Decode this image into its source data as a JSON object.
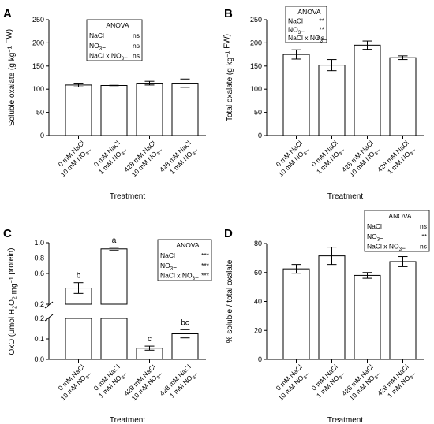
{
  "chart_data": [
    {
      "type": "bar",
      "panel": "A",
      "categories": [
        [
          "0 mM NaCl",
          "10 mM NO3−"
        ],
        [
          "0 mM NaCl",
          "1 mM NO3−"
        ],
        [
          "428 mM NaCl",
          "10 mM NO3−"
        ],
        [
          "428 mM NaCl",
          "1 mM NO3−"
        ]
      ],
      "values": [
        109,
        108,
        113,
        113
      ],
      "errors": [
        4,
        3,
        4,
        9
      ],
      "ylabel": "Soluble oxalate (g kg−1 FW)",
      "xlabel": "Treatment",
      "ylim": [
        0,
        250
      ],
      "yticks": [
        0,
        50,
        100,
        150,
        200,
        250
      ],
      "anova": {
        "title": "ANOVA",
        "rows": [
          {
            "term": "NaCl",
            "sig": "ns"
          },
          {
            "term": "NO3−",
            "sig": "ns"
          },
          {
            "term": "NaCl x NO3−",
            "sig": "ns"
          }
        ]
      }
    },
    {
      "type": "bar",
      "panel": "B",
      "categories": [
        [
          "0 mM NaCl",
          "10 mM NO3−"
        ],
        [
          "0 mM NaCl",
          "1 mM NO3−"
        ],
        [
          "428 mM NaCl",
          "10 mM NO3−"
        ],
        [
          "428 mM NaCl",
          "1 mM NO3−"
        ]
      ],
      "values": [
        175,
        152,
        195,
        168
      ],
      "errors": [
        10,
        12,
        9,
        4
      ],
      "ylabel": "Total oxalate (g kg−1 FW)",
      "xlabel": "Treatment",
      "ylim": [
        0,
        250
      ],
      "yticks": [
        0,
        50,
        100,
        150,
        200,
        250
      ],
      "anova": {
        "title": "ANOVA",
        "rows": [
          {
            "term": "NaCl",
            "sig": "**"
          },
          {
            "term": "NO3−",
            "sig": "**"
          },
          {
            "term": "NaCl x NO3−",
            "sig": "ns"
          }
        ]
      }
    },
    {
      "type": "bar",
      "panel": "C",
      "categories": [
        [
          "0 mM NaCl",
          "10 mM NO3−"
        ],
        [
          "0 mM NaCl",
          "1 mM NO3−"
        ],
        [
          "428 mM NaCl",
          "10 mM NO3−"
        ],
        [
          "428 mM NaCl",
          "1 mM NO3−"
        ]
      ],
      "values": [
        0.41,
        0.92,
        0.055,
        0.125
      ],
      "errors": [
        0.07,
        0.02,
        0.01,
        0.02
      ],
      "letters": [
        "b",
        "a",
        "c",
        "bc"
      ],
      "ylabel": "OxO (μmol H2O2 mg−1 protein)",
      "xlabel": "Treatment",
      "broken_axis": true,
      "ylim_lower": [
        0,
        0.2
      ],
      "yticks_lower": [
        0.0,
        0.1,
        0.2
      ],
      "ylim_upper": [
        0.2,
        1.0
      ],
      "yticks_upper": [
        0.2,
        0.6,
        0.8,
        1.0
      ],
      "anova": {
        "title": "ANOVA",
        "rows": [
          {
            "term": "NaCl",
            "sig": "***"
          },
          {
            "term": "NO3−",
            "sig": "***"
          },
          {
            "term": "NaCl x NO3−",
            "sig": "***"
          }
        ]
      }
    },
    {
      "type": "bar",
      "panel": "D",
      "categories": [
        [
          "0 mM NaCl",
          "10 mM NO3−"
        ],
        [
          "0 mM NaCl",
          "1 mM NO3−"
        ],
        [
          "428 mM NaCl",
          "10 mM NO3−"
        ],
        [
          "428 mM NaCl",
          "1 mM NO3−"
        ]
      ],
      "values": [
        62.5,
        71.5,
        58,
        67.5
      ],
      "errors": [
        3,
        6,
        2,
        3.5
      ],
      "ylabel": "% soluble / total oxalate",
      "xlabel": "Treatment",
      "ylim": [
        0,
        80
      ],
      "yticks": [
        0,
        20,
        40,
        60,
        80
      ],
      "anova": {
        "title": "ANOVA",
        "rows": [
          {
            "term": "NaCl",
            "sig": "ns"
          },
          {
            "term": "NO3−",
            "sig": "**"
          },
          {
            "term": "NaCl x NO3−",
            "sig": "ns"
          }
        ]
      }
    }
  ]
}
